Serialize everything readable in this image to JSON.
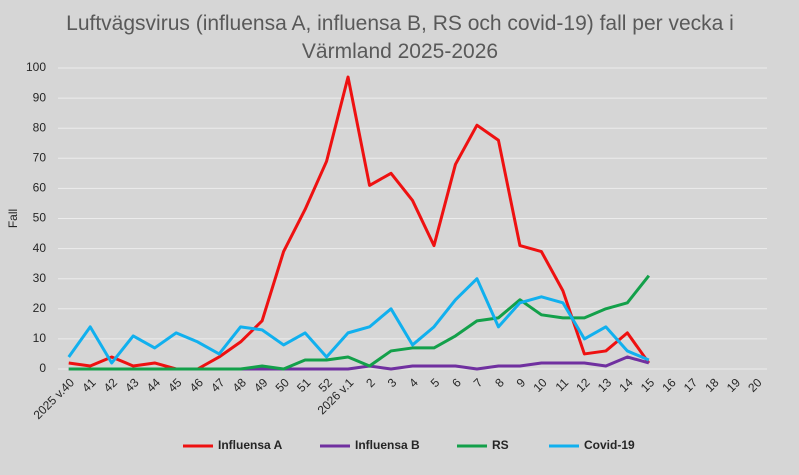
{
  "chart_data": {
    "type": "line",
    "title": "Luftvägsvirus (influensa A, influensa B, RS och covid-19) fall per vecka i Värmland 2025-2026",
    "y_label": "Fall",
    "categories": [
      "2025 v.40",
      "41",
      "42",
      "43",
      "44",
      "45",
      "46",
      "47",
      "48",
      "49",
      "50",
      "51",
      "52",
      "2026 v.1",
      "2",
      "3",
      "4",
      "5",
      "6",
      "7",
      "8",
      "9",
      "10",
      "11",
      "12",
      "13",
      "14",
      "15",
      "16",
      "17",
      "18",
      "19",
      "20"
    ],
    "series": [
      {
        "name": "Influensa A",
        "color": "#ee1111",
        "values": [
          2,
          1,
          4,
          1,
          2,
          0,
          0,
          4,
          9,
          16,
          39,
          53,
          69,
          97,
          61,
          65,
          56,
          41,
          68,
          81,
          76,
          41,
          39,
          26,
          5,
          6,
          12,
          2,
          null,
          null,
          null,
          null,
          null
        ]
      },
      {
        "name": "Influensa B",
        "color": "#7030a0",
        "values": [
          0,
          0,
          0,
          0,
          0,
          0,
          0,
          0,
          0,
          0,
          0,
          0,
          0,
          0,
          1,
          0,
          1,
          1,
          1,
          0,
          1,
          1,
          2,
          2,
          2,
          1,
          4,
          2,
          null,
          null,
          null,
          null,
          null
        ]
      },
      {
        "name": "RS",
        "color": "#13a04a",
        "values": [
          0,
          0,
          0,
          0,
          0,
          0,
          0,
          0,
          0,
          1,
          0,
          3,
          3,
          4,
          1,
          6,
          7,
          7,
          11,
          16,
          17,
          23,
          18,
          17,
          17,
          20,
          22,
          31,
          null,
          null,
          null,
          null,
          null
        ]
      },
      {
        "name": "Covid-19",
        "color": "#11b0ee",
        "values": [
          4,
          14,
          2,
          11,
          7,
          12,
          9,
          5,
          14,
          13,
          8,
          12,
          4,
          12,
          14,
          20,
          8,
          14,
          23,
          30,
          14,
          22,
          24,
          22,
          10,
          14,
          6,
          3,
          null,
          null,
          null,
          null,
          null
        ]
      }
    ],
    "ylim": [
      0,
      100
    ],
    "yticks": [
      0,
      10,
      20,
      30,
      40,
      50,
      60,
      70,
      80,
      90,
      100
    ],
    "grid": true,
    "legend": "bottom"
  }
}
